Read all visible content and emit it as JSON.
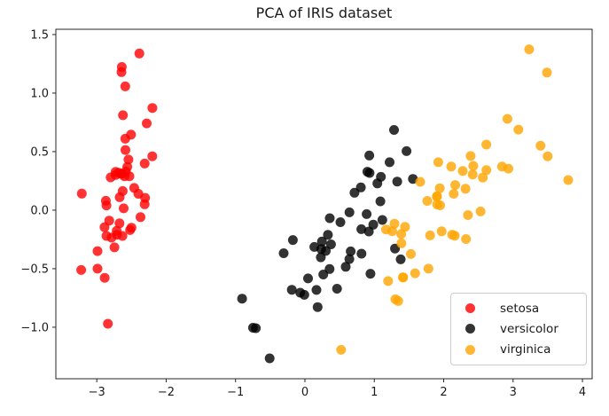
{
  "chart_data": {
    "type": "scatter",
    "title": "PCA of IRIS dataset",
    "xlabel": "",
    "ylabel": "",
    "grid": false,
    "xlim": [
      -3.59,
      4.14
    ],
    "ylim": [
      -1.44,
      1.545
    ],
    "x_ticks": [
      {
        "value": -3,
        "label": "−3"
      },
      {
        "value": -2,
        "label": "−2"
      },
      {
        "value": -1,
        "label": "−1"
      },
      {
        "value": 0,
        "label": "0"
      },
      {
        "value": 1,
        "label": "1"
      },
      {
        "value": 2,
        "label": "2"
      },
      {
        "value": 3,
        "label": "3"
      },
      {
        "value": 4,
        "label": "4"
      }
    ],
    "y_ticks": [
      {
        "value": -1.0,
        "label": "−1.0"
      },
      {
        "value": -0.5,
        "label": "−0.5"
      },
      {
        "value": 0.0,
        "label": "0.0"
      },
      {
        "value": 0.5,
        "label": "0.5"
      },
      {
        "value": 1.0,
        "label": "1.0"
      },
      {
        "value": 1.5,
        "label": "1.5"
      }
    ],
    "legend_position": "lower right",
    "marker": {
      "alpha": 0.8,
      "radius_px": 5.5
    },
    "spine_color": "#262626",
    "tick_label_color": "#1a1a1a",
    "series": [
      {
        "name": "setosa",
        "color_hex": "#ff0000",
        "n": 50,
        "points": [
          [
            -2.684,
            0.319
          ],
          [
            -2.714,
            -0.177
          ],
          [
            -2.889,
            -0.145
          ],
          [
            -2.746,
            -0.318
          ],
          [
            -2.729,
            0.327
          ],
          [
            -2.281,
            0.741
          ],
          [
            -2.821,
            -0.089
          ],
          [
            -2.626,
            0.163
          ],
          [
            -2.886,
            -0.578
          ],
          [
            -2.673,
            -0.113
          ],
          [
            -2.507,
            0.645
          ],
          [
            -2.613,
            0.015
          ],
          [
            -2.787,
            -0.235
          ],
          [
            -3.225,
            -0.511
          ],
          [
            -2.644,
            1.179
          ],
          [
            -2.386,
            1.338
          ],
          [
            -2.623,
            0.811
          ],
          [
            -2.648,
            0.311
          ],
          [
            -2.199,
            0.873
          ],
          [
            -2.587,
            0.514
          ],
          [
            -2.31,
            0.398
          ],
          [
            -2.543,
            0.432
          ],
          [
            -3.216,
            0.141
          ],
          [
            -2.303,
            0.105
          ],
          [
            -2.59,
            1.057
          ],
          [
            -2.64,
            1.223
          ],
          [
            -2.59,
            0.61
          ],
          [
            -2.2,
            0.46
          ],
          [
            -2.8,
            0.28
          ],
          [
            -2.87,
            0.08
          ],
          [
            -2.67,
            0.11
          ],
          [
            -2.46,
            0.19
          ],
          [
            -2.4,
            0.14
          ],
          [
            -2.86,
            0.04
          ],
          [
            -2.31,
            0.05
          ],
          [
            -2.37,
            -0.06
          ],
          [
            -2.52,
            -0.17
          ],
          [
            -2.71,
            -0.21
          ],
          [
            -2.63,
            -0.22
          ],
          [
            -2.5,
            -0.15
          ],
          [
            -2.86,
            -0.22
          ],
          [
            -2.99,
            -0.35
          ],
          [
            -2.99,
            -0.5
          ],
          [
            -2.84,
            -0.97
          ],
          [
            -2.64,
            0.31
          ],
          [
            -2.56,
            0.37
          ],
          [
            -2.6,
            0.29
          ],
          [
            -2.73,
            0.3
          ],
          [
            -2.53,
            0.29
          ],
          [
            -2.58,
            0.33
          ]
        ]
      },
      {
        "name": "versicolor",
        "color_hex": "#000000",
        "n": 50,
        "points": [
          [
            1.284,
            0.685
          ],
          [
            0.932,
            0.318
          ],
          [
            1.464,
            0.504
          ],
          [
            0.183,
            -0.828
          ],
          [
            1.088,
            0.075
          ],
          [
            0.641,
            -0.418
          ],
          [
            1.095,
            0.284
          ],
          [
            -0.749,
            -1.004
          ],
          [
            1.044,
            0.228
          ],
          [
            -0.009,
            -0.723
          ],
          [
            -0.508,
            -1.266
          ],
          [
            0.511,
            -0.103
          ],
          [
            0.265,
            -0.55
          ],
          [
            0.985,
            -0.124
          ],
          [
            -0.174,
            -0.255
          ],
          [
            0.928,
            0.467
          ],
          [
            0.66,
            -0.352
          ],
          [
            0.236,
            -0.333
          ],
          [
            0.944,
            -0.543
          ],
          [
            0.045,
            -0.583
          ],
          [
            1.116,
            -0.084
          ],
          [
            0.358,
            -0.069
          ],
          [
            1.298,
            -0.328
          ],
          [
            0.921,
            -0.182
          ],
          [
            0.714,
            0.149
          ],
          [
            0.9,
            0.328
          ],
          [
            1.33,
            0.244
          ],
          [
            1.557,
            0.267
          ],
          [
            0.813,
            -0.163
          ],
          [
            -0.306,
            -0.368
          ],
          [
            -0.068,
            -0.705
          ],
          [
            -0.189,
            -0.68
          ],
          [
            0.136,
            -0.314
          ],
          [
            1.38,
            -0.42
          ],
          [
            0.588,
            -0.484
          ],
          [
            0.807,
            0.194
          ],
          [
            1.22,
            0.409
          ],
          [
            0.815,
            -0.372
          ],
          [
            0.245,
            -0.268
          ],
          [
            0.166,
            -0.682
          ],
          [
            0.463,
            -0.671
          ],
          [
            0.89,
            -0.034
          ],
          [
            0.229,
            -0.403
          ],
          [
            -0.707,
            -1.008
          ],
          [
            0.355,
            -0.503
          ],
          [
            0.331,
            -0.211
          ],
          [
            0.376,
            -0.292
          ],
          [
            0.642,
            -0.019
          ],
          [
            -0.906,
            -0.756
          ],
          [
            0.3,
            -0.348
          ]
        ]
      },
      {
        "name": "virginica",
        "color_hex": "#ffa500",
        "n": 50,
        "points": [
          [
            2.531,
            -0.011
          ],
          [
            1.415,
            -0.574
          ],
          [
            2.616,
            0.342
          ],
          [
            1.971,
            -0.181
          ],
          [
            2.35,
            -0.042
          ],
          [
            3.397,
            0.55
          ],
          [
            0.521,
            -1.193
          ],
          [
            2.933,
            0.355
          ],
          [
            2.322,
            -0.247
          ],
          [
            2.918,
            0.78
          ],
          [
            1.661,
            0.242
          ],
          [
            1.804,
            -0.216
          ],
          [
            2.166,
            0.215
          ],
          [
            1.344,
            -0.776
          ],
          [
            1.588,
            -0.539
          ],
          [
            1.904,
            0.119
          ],
          [
            1.949,
            0.041
          ],
          [
            3.489,
            1.175
          ],
          [
            3.795,
            0.257
          ],
          [
            1.303,
            -0.761
          ],
          [
            2.427,
            0.378
          ],
          [
            1.199,
            -0.606
          ],
          [
            3.499,
            0.46
          ],
          [
            1.388,
            -0.204
          ],
          [
            2.275,
            0.334
          ],
          [
            2.614,
            0.56
          ],
          [
            1.258,
            -0.179
          ],
          [
            1.291,
            -0.116
          ],
          [
            2.123,
            -0.21
          ],
          [
            2.388,
            0.462
          ],
          [
            2.841,
            0.372
          ],
          [
            3.232,
            1.374
          ],
          [
            2.159,
            -0.218
          ],
          [
            1.443,
            -0.143
          ],
          [
            1.78,
            -0.5
          ],
          [
            3.077,
            0.688
          ],
          [
            2.144,
            0.14
          ],
          [
            1.905,
            0.049
          ],
          [
            1.169,
            -0.165
          ],
          [
            2.108,
            0.372
          ],
          [
            2.314,
            0.183
          ],
          [
            1.922,
            0.409
          ],
          [
            1.415,
            -0.574
          ],
          [
            2.563,
            0.278
          ],
          [
            2.418,
            0.305
          ],
          [
            1.944,
            0.187
          ],
          [
            1.527,
            -0.375
          ],
          [
            1.764,
            0.079
          ],
          [
            1.901,
            0.116
          ],
          [
            1.39,
            -0.283
          ]
        ]
      }
    ]
  }
}
